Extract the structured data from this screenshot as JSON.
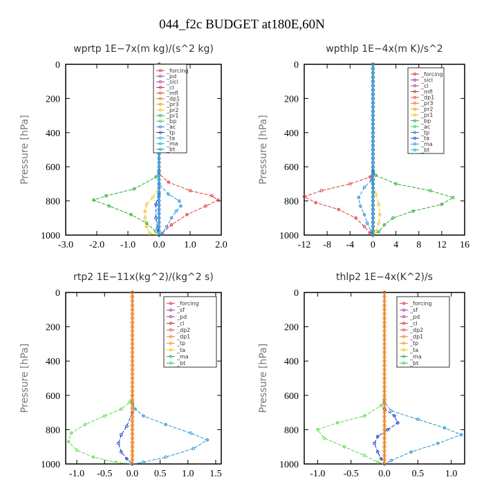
{
  "figure_title": "044_f2c  BUDGET at180E,60N",
  "chart_data": [
    {
      "type": "line",
      "title": "wprtp  1E−7x(m kg)/(s^2 kg)",
      "ylabel": "Pressure [hPa]",
      "xlim": [
        -3.0,
        2.0
      ],
      "ylim": [
        1000,
        0
      ],
      "xticks": [
        "-3.0",
        "-2.0",
        "-1.0",
        "0.0",
        "1.0",
        "2.0"
      ],
      "xtick_values": [
        -3,
        -2,
        -1,
        0,
        1,
        2
      ],
      "yticks": [
        "0",
        "200",
        "400",
        "600",
        "800",
        "1000"
      ],
      "legend_position": "top-center",
      "legend": [
        "_forcing",
        "_pd",
        "_sicl",
        "_cl",
        "_mfl",
        "_dp1",
        "_pr3",
        "_pr2",
        "_pr1",
        "_bp",
        "_ac",
        "_tp",
        "_ta",
        "_ma",
        "_bt"
      ],
      "series": [
        {
          "name": "_bp",
          "color": "#22aa22",
          "points": [
            [
              0,
              0
            ],
            [
              0,
              620
            ],
            [
              -0.1,
              660
            ],
            [
              -0.8,
              730
            ],
            [
              -1.7,
              770
            ],
            [
              -2.1,
              795
            ],
            [
              -1.6,
              830
            ],
            [
              -0.9,
              880
            ],
            [
              -0.4,
              930
            ],
            [
              -0.1,
              980
            ],
            [
              0,
              1000
            ]
          ]
        },
        {
          "name": "_dp1",
          "color": "#e23131",
          "points": [
            [
              0,
              0
            ],
            [
              0,
              640
            ],
            [
              0.3,
              690
            ],
            [
              1.0,
              740
            ],
            [
              1.7,
              770
            ],
            [
              1.9,
              795
            ],
            [
              1.5,
              830
            ],
            [
              0.9,
              880
            ],
            [
              0.4,
              940
            ],
            [
              0.1,
              990
            ],
            [
              0,
              1000
            ]
          ]
        },
        {
          "name": "_tp",
          "color": "#1f8fd6",
          "points": [
            [
              0,
              0
            ],
            [
              0,
              700
            ],
            [
              0.3,
              760
            ],
            [
              0.65,
              800
            ],
            [
              0.7,
              830
            ],
            [
              0.55,
              860
            ],
            [
              0.4,
              900
            ],
            [
              0.25,
              950
            ],
            [
              0.1,
              990
            ],
            [
              0,
              1000
            ]
          ]
        },
        {
          "name": "_pr1",
          "color": "#f0c020",
          "points": [
            [
              0,
              0
            ],
            [
              0,
              720
            ],
            [
              -0.2,
              780
            ],
            [
              -0.4,
              820
            ],
            [
              -0.45,
              860
            ],
            [
              -0.45,
              900
            ],
            [
              -0.4,
              950
            ],
            [
              -0.3,
              990
            ],
            [
              0,
              1000
            ]
          ]
        },
        {
          "name": "_ta",
          "color": "#1133cc",
          "points": [
            [
              0,
              0
            ],
            [
              0,
              760
            ],
            [
              -0.1,
              820
            ],
            [
              -0.1,
              900
            ],
            [
              -0.05,
              960
            ],
            [
              0,
              1000
            ]
          ]
        },
        {
          "name": "_forcing",
          "color": "#000000",
          "points": [
            [
              0,
              0
            ],
            [
              0,
              1000
            ]
          ]
        },
        {
          "name": "_pd",
          "color": "#9988ee",
          "points": [
            [
              0,
              0
            ],
            [
              0,
              1000
            ]
          ]
        },
        {
          "name": "_ma",
          "color": "#3399dd",
          "points": [
            [
              0,
              0
            ],
            [
              0,
              1000
            ]
          ]
        }
      ]
    },
    {
      "type": "line",
      "title": "wpthlp  1E−4x(m K)/s^2",
      "ylabel": "Pressure [hPa]",
      "xlim": [
        -12,
        16
      ],
      "ylim": [
        1000,
        0
      ],
      "xticks": [
        "-12",
        "-8",
        "-4",
        "0",
        "4",
        "8",
        "12",
        "16"
      ],
      "xtick_values": [
        -12,
        -8,
        -4,
        0,
        4,
        8,
        12,
        16
      ],
      "yticks": [
        "0",
        "200",
        "400",
        "600",
        "800",
        "1000"
      ],
      "legend_position": "top-right",
      "legend": [
        "_forcing",
        "_sicl",
        "_cl",
        "_mfl",
        "_dp1",
        "_pr3",
        "_pr2",
        "_pr1",
        "_bp",
        "_ac",
        "_tp",
        "_ta",
        "_ma",
        "_bt"
      ],
      "series": [
        {
          "name": "_bp",
          "color": "#22aa22",
          "points": [
            [
              0,
              0
            ],
            [
              0,
              620
            ],
            [
              0.5,
              650
            ],
            [
              4,
              700
            ],
            [
              10,
              740
            ],
            [
              14,
              780
            ],
            [
              12,
              820
            ],
            [
              7,
              860
            ],
            [
              3.5,
              900
            ],
            [
              2,
              940
            ],
            [
              1,
              980
            ],
            [
              0,
              1000
            ]
          ]
        },
        {
          "name": "_dp1",
          "color": "#e23131",
          "points": [
            [
              0,
              0
            ],
            [
              0,
              630
            ],
            [
              -0.5,
              660
            ],
            [
              -4,
              700
            ],
            [
              -9,
              740
            ],
            [
              -12,
              775
            ],
            [
              -10,
              810
            ],
            [
              -6,
              850
            ],
            [
              -3,
              900
            ],
            [
              -1.5,
              950
            ],
            [
              -0.5,
              990
            ],
            [
              0,
              1000
            ]
          ]
        },
        {
          "name": "_tp",
          "color": "#1f8fd6",
          "points": [
            [
              0,
              0
            ],
            [
              0,
              640
            ],
            [
              -0.3,
              680
            ],
            [
              -1.5,
              720
            ],
            [
              -2.5,
              780
            ],
            [
              -2.2,
              830
            ],
            [
              -1.5,
              880
            ],
            [
              -1,
              930
            ],
            [
              -0.3,
              980
            ],
            [
              0,
              1000
            ]
          ]
        },
        {
          "name": "_pr1",
          "color": "#f0c020",
          "points": [
            [
              0,
              0
            ],
            [
              0,
              700
            ],
            [
              0.5,
              760
            ],
            [
              1,
              820
            ],
            [
              1.2,
              880
            ],
            [
              1,
              930
            ],
            [
              0.5,
              980
            ],
            [
              0,
              1000
            ]
          ]
        },
        {
          "name": "_forcing",
          "color": "#000000",
          "points": [
            [
              0,
              0
            ],
            [
              0,
              1000
            ]
          ]
        },
        {
          "name": "_ma",
          "color": "#3399dd",
          "points": [
            [
              0,
              0
            ],
            [
              0,
              1000
            ]
          ]
        }
      ]
    },
    {
      "type": "line",
      "title": "rtp2  1E−11x(kg^2)/(kg^2 s)",
      "ylabel": "Pressure [hPa]",
      "xlim": [
        -1.2,
        1.6
      ],
      "ylim": [
        1000,
        0
      ],
      "xticks": [
        "-1.0",
        "-0.5",
        "0.0",
        "0.5",
        "1.0",
        "1.5"
      ],
      "xtick_values": [
        -1.0,
        -0.5,
        0.0,
        0.5,
        1.0,
        1.5
      ],
      "yticks": [
        "0",
        "200",
        "400",
        "600",
        "800",
        "1000"
      ],
      "legend_position": "top-right",
      "legend": [
        "_forcing",
        "_sf",
        "_pd",
        "_cl",
        "_dp2",
        "_dp1",
        "_tp",
        "_ta",
        "_ma",
        "_bt"
      ],
      "series": [
        {
          "name": "_dp1",
          "color": "#55dd44",
          "points": [
            [
              0,
              0
            ],
            [
              0,
              600
            ],
            [
              -0.05,
              640
            ],
            [
              -0.2,
              680
            ],
            [
              -0.5,
              720
            ],
            [
              -0.85,
              770
            ],
            [
              -1.1,
              820
            ],
            [
              -1.15,
              870
            ],
            [
              -1.0,
              920
            ],
            [
              -0.7,
              960
            ],
            [
              -0.3,
              990
            ],
            [
              0,
              1000
            ]
          ]
        },
        {
          "name": "_tp",
          "color": "#1f8fd6",
          "points": [
            [
              0,
              0
            ],
            [
              0,
              640
            ],
            [
              0.05,
              680
            ],
            [
              0.2,
              720
            ],
            [
              0.6,
              770
            ],
            [
              1.05,
              820
            ],
            [
              1.35,
              860
            ],
            [
              1.1,
              910
            ],
            [
              0.6,
              960
            ],
            [
              0.2,
              990
            ],
            [
              0,
              1000
            ]
          ]
        },
        {
          "name": "_ta",
          "color": "#1133cc",
          "points": [
            [
              0,
              0
            ],
            [
              0,
              700
            ],
            [
              -0.1,
              780
            ],
            [
              -0.2,
              830
            ],
            [
              -0.25,
              880
            ],
            [
              -0.2,
              930
            ],
            [
              -0.1,
              970
            ],
            [
              0,
              1000
            ]
          ]
        },
        {
          "name": "_forcing",
          "color": "#e23131",
          "points": [
            [
              0,
              0
            ],
            [
              0,
              1000
            ]
          ]
        },
        {
          "name": "_pd",
          "color": "#f08a20",
          "points": [
            [
              0,
              0
            ],
            [
              0,
              1000
            ]
          ]
        }
      ]
    },
    {
      "type": "line",
      "title": "thlp2  1E−4x(K^2)/s",
      "ylabel": "Pressure [hPa]",
      "xlim": [
        -1.2,
        1.2
      ],
      "ylim": [
        1000,
        0
      ],
      "xticks": [
        "-1.0",
        "-0.5",
        "0.0",
        "0.5",
        "1.0"
      ],
      "xtick_values": [
        -1.0,
        -0.5,
        0.0,
        0.5,
        1.0
      ],
      "yticks": [
        "0",
        "200",
        "400",
        "600",
        "800",
        "1000"
      ],
      "legend_position": "top-right",
      "legend": [
        "_forcing",
        "_sf",
        "_pd",
        "_cl",
        "_dp2",
        "_dp1",
        "_tp",
        "_ta",
        "_ma",
        "_bt"
      ],
      "series": [
        {
          "name": "_dp1",
          "color": "#55dd44",
          "points": [
            [
              0,
              0
            ],
            [
              0,
              620
            ],
            [
              -0.05,
              660
            ],
            [
              -0.3,
              720
            ],
            [
              -0.7,
              760
            ],
            [
              -1.0,
              800
            ],
            [
              -0.9,
              850
            ],
            [
              -0.6,
              900
            ],
            [
              -0.3,
              950
            ],
            [
              -0.1,
              990
            ],
            [
              0,
              1000
            ]
          ]
        },
        {
          "name": "_tp",
          "color": "#1f8fd6",
          "points": [
            [
              0,
              0
            ],
            [
              0,
              640
            ],
            [
              0.1,
              690
            ],
            [
              0.5,
              740
            ],
            [
              0.9,
              790
            ],
            [
              1.15,
              830
            ],
            [
              0.8,
              880
            ],
            [
              0.4,
              930
            ],
            [
              0.1,
              980
            ],
            [
              0,
              1000
            ]
          ]
        },
        {
          "name": "_ta",
          "color": "#1133cc",
          "points": [
            [
              0,
              0
            ],
            [
              0,
              680
            ],
            [
              0.15,
              720
            ],
            [
              0.2,
              760
            ],
            [
              0.05,
              800
            ],
            [
              -0.1,
              840
            ],
            [
              -0.15,
              880
            ],
            [
              -0.1,
              930
            ],
            [
              -0.05,
              970
            ],
            [
              0,
              1000
            ]
          ]
        },
        {
          "name": "_forcing",
          "color": "#e23131",
          "points": [
            [
              0,
              0
            ],
            [
              0,
              1000
            ]
          ]
        },
        {
          "name": "_pd",
          "color": "#f08a20",
          "points": [
            [
              0,
              0
            ],
            [
              0,
              1000
            ]
          ]
        }
      ]
    }
  ]
}
